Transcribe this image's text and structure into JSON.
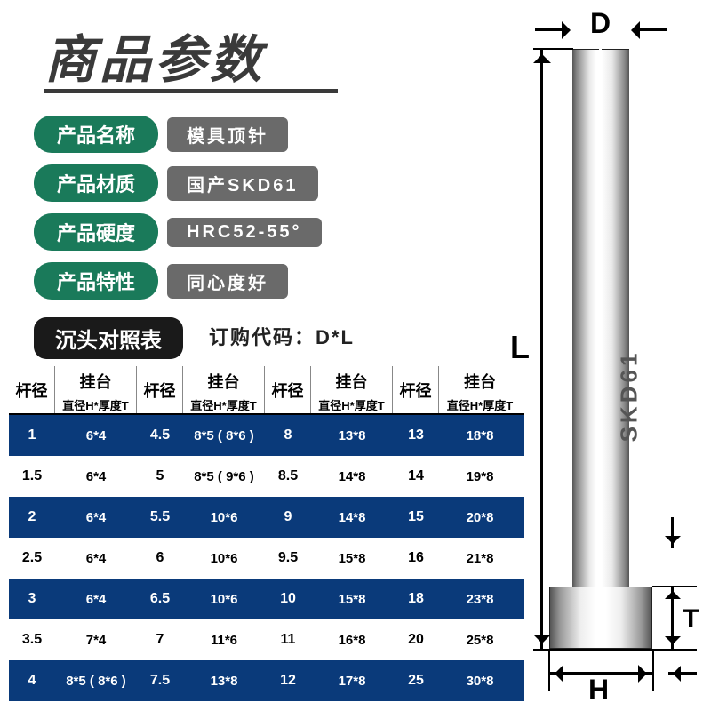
{
  "title": "商品参数",
  "specs": [
    {
      "label": "产品名称",
      "value": "模具顶针"
    },
    {
      "label": "产品材质",
      "value": "国产SKD61"
    },
    {
      "label": "产品硬度",
      "value": "HRC52-55°"
    },
    {
      "label": "产品特性",
      "value": "同心度好"
    }
  ],
  "table_title": "沉头对照表",
  "order_code_text": "订购代码：D*L",
  "headers": {
    "col_diameter": "杆径",
    "col_platform": "挂台",
    "col_sub": "直径H*厚度T"
  },
  "dim_labels": {
    "D": "D",
    "L": "L",
    "T": "T",
    "H": "H"
  },
  "pin_marking": "SKD61",
  "colors": {
    "green": "#1a7a5a",
    "grey": "#6a6a6a",
    "black": "#1a1a1a",
    "blue_row": "#0a3a7a",
    "title": "#3a3a3a"
  },
  "table": {
    "rows": [
      {
        "bg": "blue",
        "cells": [
          "1",
          "6*4",
          "4.5",
          "8*5 ( 8*6 )",
          "8",
          "13*8",
          "13",
          "18*8"
        ]
      },
      {
        "bg": "white",
        "cells": [
          "1.5",
          "6*4",
          "5",
          "8*5 ( 9*6 )",
          "8.5",
          "14*8",
          "14",
          "19*8"
        ]
      },
      {
        "bg": "blue",
        "cells": [
          "2",
          "6*4",
          "5.5",
          "10*6",
          "9",
          "14*8",
          "15",
          "20*8"
        ]
      },
      {
        "bg": "white",
        "cells": [
          "2.5",
          "6*4",
          "6",
          "10*6",
          "9.5",
          "15*8",
          "16",
          "21*8"
        ]
      },
      {
        "bg": "blue",
        "cells": [
          "3",
          "6*4",
          "6.5",
          "10*6",
          "10",
          "15*8",
          "18",
          "23*8"
        ]
      },
      {
        "bg": "white",
        "cells": [
          "3.5",
          "7*4",
          "7",
          "11*6",
          "11",
          "16*8",
          "20",
          "25*8"
        ]
      },
      {
        "bg": "blue",
        "cells": [
          "4",
          "8*5 ( 8*6 )",
          "7.5",
          "13*8",
          "12",
          "17*8",
          "25",
          "30*8"
        ]
      }
    ]
  }
}
